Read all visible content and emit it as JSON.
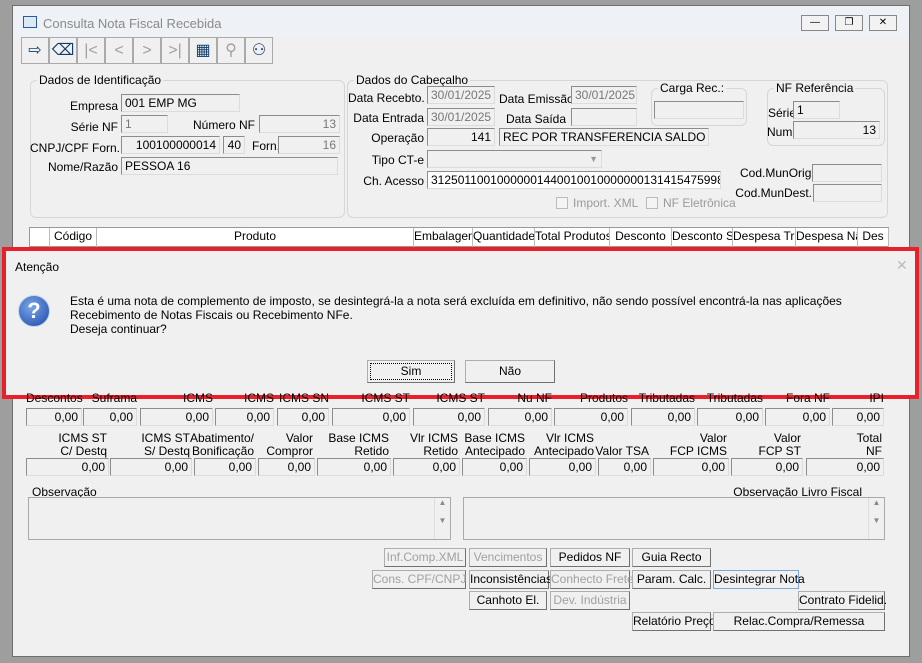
{
  "window": {
    "title": "Consulta Nota Fiscal Recebida",
    "controls": [
      "minimize",
      "restore",
      "close"
    ]
  },
  "toolbar": [
    {
      "icon": "exit-icon",
      "glyph": "⇨",
      "enabled": true
    },
    {
      "icon": "eraser-icon",
      "glyph": "⌫",
      "enabled": true
    },
    {
      "icon": "first-icon",
      "glyph": "|<",
      "enabled": false
    },
    {
      "icon": "prev-icon",
      "glyph": "<",
      "enabled": false
    },
    {
      "icon": "next-icon",
      "glyph": ">",
      "enabled": false
    },
    {
      "icon": "last-icon",
      "glyph": ">|",
      "enabled": false
    },
    {
      "icon": "grid-icon",
      "glyph": "▦",
      "enabled": true
    },
    {
      "icon": "search-icon",
      "glyph": "⚲",
      "enabled": false
    },
    {
      "icon": "user-icon",
      "glyph": "⚇",
      "enabled": true
    }
  ],
  "ident": {
    "title": "Dados de Identificação",
    "empresa_label": "Empresa",
    "empresa": "001 EMP MG",
    "serie_label": "Série NF",
    "serie": "1",
    "numero_label": "Número NF",
    "numero": "13",
    "cnpj_label": "CNPJ/CPF Forn.",
    "cnpj": "100100000014",
    "cnpj_dv": "40",
    "forn_label": "Forn.",
    "forn": "16",
    "nome_label": "Nome/Razão",
    "nome": "PESSOA 16"
  },
  "cab": {
    "title": "Dados do Cabeçalho",
    "receb_label": "Data Recebto.",
    "receb": "30/01/2025",
    "emissao_label": "Data Emissão",
    "emissao": "30/01/2025",
    "entrada_label": "Data Entrada",
    "entrada": "30/01/2025",
    "saida_label": "Data Saída",
    "saida": "",
    "operacao_label": "Operação",
    "operacao": "141",
    "operacao_desc": "REC POR TRANSFERENCIA SALDO CREDOR ICMS",
    "tipo_label": "Tipo CT-e",
    "tipo": "",
    "chave_label": "Ch. Acesso",
    "chave": "31250110010000001440010010000000131415475998",
    "import_xml": "Import. XML",
    "nfe": "NF Eletrônica",
    "carga_title": "Carga Rec.:",
    "nfref_title": "NF Referência",
    "nfref_serie_label": "Série",
    "nfref_serie": "1",
    "nfref_num_label": "Num.",
    "nfref_num": "13",
    "munorig_label": "Cod.MunOrig.",
    "mundest_label": "Cod.MunDest."
  },
  "grid_headers": [
    "",
    "Código",
    "Produto",
    "Embalagem",
    "Quantidade",
    "Total Produtos",
    "Desconto",
    "Desconto Suframa",
    "Despesa Tributadas",
    "Despesa Não Tribut.",
    "Des"
  ],
  "dialog": {
    "title": "Atenção",
    "message": "Esta é uma nota de complemento de imposto, se desintegrá-la a nota será excluída em definitivo, não sendo possível encontrá-la nas aplicações Recebimento de Notas Fiscais ou Recebimento NFe.",
    "question": "Deseja continuar?",
    "yes": "Sim",
    "no": "Não",
    "highlight_color": "#e8202a"
  },
  "totals1": {
    "labels": [
      "Descontos",
      "Suframa",
      "ICMS",
      "ICMS",
      "ICMS SN",
      "ICMS ST",
      "ICMS ST",
      "Nu NF",
      "Produtos",
      "Tributadas",
      "Tributadas",
      "Fora NF",
      "IPI"
    ],
    "values": [
      "0,00",
      "0,00",
      "0,00",
      "0,00",
      "0,00",
      "0,00",
      "0,00",
      "0,00",
      "0,00",
      "0,00",
      "0,00",
      "0,00",
      "0,00"
    ]
  },
  "totals2": {
    "labels": [
      "ICMS ST\nC/ Destq",
      "ICMS ST\nS/ Destq",
      "Abatimento/\nBonificação",
      "Valor\nCompror",
      "Base ICMS\nRetido",
      "Vlr ICMS\nRetido",
      "Base ICMS\nAntecipado",
      "Vlr ICMS\nAntecipado",
      "Valor TSA",
      "Valor\nFCP ICMS",
      "Valor\nFCP ST",
      "Total\nNF"
    ],
    "values": [
      "0,00",
      "0,00",
      "0,00",
      "0,00",
      "0,00",
      "0,00",
      "0,00",
      "0,00",
      "0,00",
      "0,00",
      "0,00",
      "0,00"
    ]
  },
  "obs": {
    "label": "Observação",
    "livro_label": "Observação Livro Fiscal"
  },
  "buttons": [
    {
      "label": "Inf.Comp.XML",
      "enabled": false
    },
    {
      "label": "Vencimentos",
      "enabled": false
    },
    {
      "label": "Pedidos NF",
      "enabled": true
    },
    {
      "label": "Guia Recto",
      "enabled": true
    },
    {
      "label": "Cons. CPF/CNPJ",
      "enabled": false
    },
    {
      "label": "Inconsistências",
      "enabled": true
    },
    {
      "label": "Conhecto Frete",
      "enabled": false
    },
    {
      "label": "Param. Calc.",
      "enabled": true
    },
    {
      "label": "Desintegrar Nota",
      "enabled": true
    },
    {
      "label": "Canhoto El.",
      "enabled": true
    },
    {
      "label": "Dev. Indústria",
      "enabled": false
    },
    {
      "label": "Contrato Fidelid.",
      "enabled": true
    },
    {
      "label": "Relatório Preço",
      "enabled": true
    },
    {
      "label": "Relac.Compra/Remessa",
      "enabled": true
    }
  ]
}
